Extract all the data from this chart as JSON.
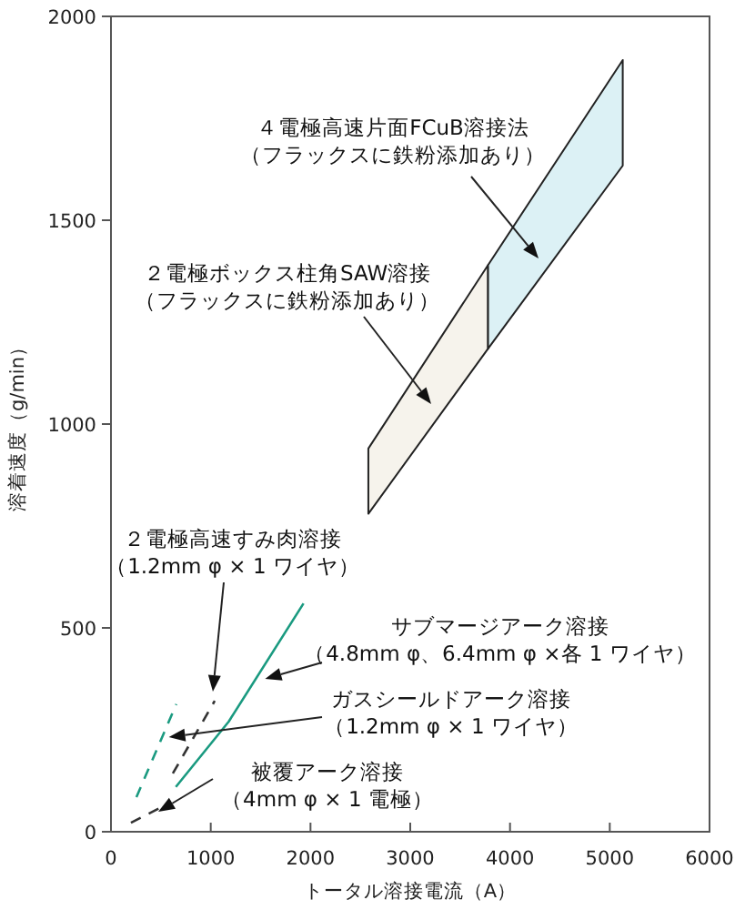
{
  "chart_data": {
    "type": "line",
    "xlabel": "トータル溶接電流（A）",
    "ylabel": "溶着速度（g/min）",
    "xlim": [
      0,
      6000
    ],
    "xticks": [
      0,
      1000,
      2000,
      3000,
      4000,
      5000,
      6000
    ],
    "ylim": [
      0,
      2000
    ],
    "yticks": [
      0,
      500,
      1000,
      1500,
      2000
    ],
    "series": [
      {
        "type": "area",
        "x": [
          2580,
          3780
        ],
        "values": [
          null,
          null
        ],
        "lower": [
          780,
          1185
        ],
        "upper": [
          940,
          1390
        ],
        "color": "#f6f3ec"
      },
      {
        "type": "area",
        "x": [
          3780,
          5130
        ],
        "values": [
          null,
          null
        ],
        "lower": [
          1185,
          1634
        ],
        "upper": [
          1390,
          1893
        ],
        "color": "#dcf1f5"
      },
      {
        "x": [
          650,
          1180,
          1930
        ],
        "values": [
          110,
          270,
          560
        ],
        "color": "#1a9a80",
        "line_style": "solid"
      },
      {
        "x": [
          255,
          655
        ],
        "values": [
          85,
          313
        ],
        "color": "#1a9a80",
        "line_style": "dashed"
      },
      {
        "x": [
          620,
          1040
        ],
        "values": [
          143,
          321
        ],
        "color": "#333333",
        "line_style": "dashed"
      },
      {
        "x": [
          200,
          560
        ],
        "values": [
          22,
          67
        ],
        "color": "#333333",
        "line_style": "dashed"
      }
    ],
    "annotations": [
      "４電極高速片面FCuB溶接法（フラックスに鉄粉添加あり）",
      "２電極ボックス柱角SAW溶接（フラックスに鉄粉添加あり）",
      "２電極高速すみ肉溶接（1.2mm φ × 1 ワイヤ）",
      {
        "text": "サブマージアーク溶接（4.8mm φ、6.4mm φ ×各 1 ワイヤ）",
        "x": 1545,
        "y": 375
      },
      {
        "text": "ガスシールドアーク溶接（1.2mm φ × 1 ワイヤ）",
        "x": 580,
        "y": 232
      },
      "被覆アーク溶接（4mm φ × 1 電極）"
    ]
  }
}
